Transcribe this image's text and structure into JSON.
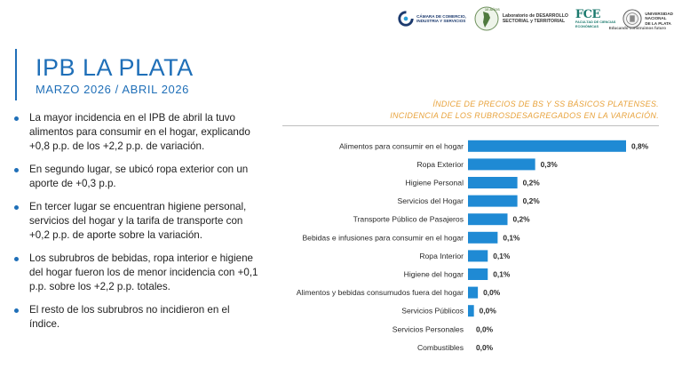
{
  "header": {
    "logo_camara_line1": "CÁMARA DE COMERCIO,",
    "logo_camara_line2": "INDUSTRIA Y SERVICIOS",
    "logo_lds_line1": "Laboratorio de DESARROLLO",
    "logo_lds_line2": "SECTORIAL y TERRITORIAL",
    "logo_lds_badge": "10 AÑOS",
    "logo_fce_mark": "FCE",
    "logo_fce_line1": "FACULTAD DE CIENCIAS",
    "logo_fce_line2": "ECONÓMICAS",
    "logo_unlp_line1": "UNIVERSIDAD",
    "logo_unlp_line2": "NACIONAL",
    "logo_unlp_line3": "DE LA PLATA",
    "slogan": "Educando construimos futuro"
  },
  "title": "IPB LA PLATA",
  "subtitle": "MARZO 2026 / ABRIL 2026",
  "bullets": [
    "La mayor incidencia en el IPB de abril la tuvo alimentos para consumir en el hogar, explicando +0,8 p.p. de los +2,2 p.p. de variación.",
    "En segundo lugar, se ubicó ropa exterior con un aporte de +0,3 p.p.",
    "En tercer lugar se encuentran higiene personal, servicios del hogar y la tarifa de transporte con +0,2 p.p. de aporte sobre la variación.",
    "Los subrubros de bebidas, ropa interior e higiene del hogar fueron los de menor incidencia con +0,1 p.p. sobre los +2,2 p.p. totales.",
    "El resto de los subrubros no incidieron en el índice."
  ],
  "chart_title_line1": "ÍNDICE DE PRECIOS DE BS Y SS BÁSICOS PLATENSES.",
  "chart_title_line2": "INCIDENCIA DE LOS RUBROSDESAGREGADOS EN LA VARIACIÓN.",
  "chart_data": {
    "type": "bar",
    "orientation": "horizontal",
    "title": "ÍNDICE DE PRECIOS DE BS Y SS BÁSICOS PLATENSES. INCIDENCIA DE LOS RUBROSDESAGREGADOS EN LA VARIACIÓN.",
    "categories": [
      "Alimentos para consumir en el hogar",
      "Ropa Exterior",
      "Higiene Personal",
      "Servicios del Hogar",
      "Transporte Público de Pasajeros",
      "Bebidas e infusiones para consumir en el hogar",
      "Ropa Interior",
      "Higiene del hogar",
      "Alimentos y bebidas consumudos fuera del hogar",
      "Servicios Públicos",
      "Servicios Personales",
      "Combustibles"
    ],
    "values": [
      0.8,
      0.34,
      0.25,
      0.25,
      0.2,
      0.15,
      0.1,
      0.1,
      0.05,
      0.03,
      0.0,
      0.0
    ],
    "value_labels": [
      "0,8%",
      "0,3%",
      "0,2%",
      "0,2%",
      "0,2%",
      "0,1%",
      "0,1%",
      "0,1%",
      "0,0%",
      "0,0%",
      "0,0%",
      "0,0%"
    ],
    "bar_color": "#1f8ad4",
    "xlim": [
      0,
      0.8
    ]
  }
}
